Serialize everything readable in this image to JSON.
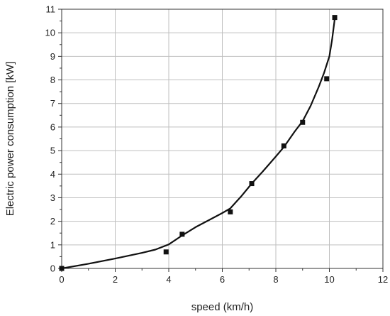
{
  "chart_data": {
    "type": "scatter",
    "title": "",
    "xlabel": "speed (km/h)",
    "ylabel": "Electric power consumption  [kW]",
    "xlim": [
      0,
      12
    ],
    "ylim": [
      0,
      11
    ],
    "xticks": [
      "0",
      "2",
      "4",
      "6",
      "8",
      "10",
      "12"
    ],
    "yticks": [
      "0",
      "1",
      "2",
      "3",
      "4",
      "5",
      "6",
      "7",
      "8",
      "9",
      "10",
      "11"
    ],
    "grid": true,
    "legend": "none",
    "series": [
      {
        "kind": "points",
        "marker": "square",
        "x": [
          0.0,
          3.9,
          4.5,
          6.3,
          7.1,
          8.3,
          9.0,
          9.9,
          10.2
        ],
        "y": [
          0.0,
          0.7,
          1.45,
          2.4,
          3.6,
          5.2,
          6.2,
          8.05,
          10.65
        ]
      },
      {
        "kind": "fit-curve",
        "x": [
          0.0,
          1.0,
          2.0,
          3.0,
          3.5,
          4.0,
          4.5,
          5.0,
          5.5,
          6.0,
          6.3,
          6.7,
          7.1,
          7.5,
          8.0,
          8.3,
          8.7,
          9.0,
          9.3,
          9.6,
          9.8,
          10.0,
          10.1,
          10.2
        ],
        "y": [
          0.0,
          0.2,
          0.42,
          0.66,
          0.8,
          1.02,
          1.4,
          1.75,
          2.05,
          2.35,
          2.55,
          3.05,
          3.6,
          4.1,
          4.75,
          5.15,
          5.8,
          6.25,
          6.9,
          7.7,
          8.3,
          9.0,
          9.7,
          10.6
        ]
      }
    ],
    "colors": {
      "marker": "#111111",
      "curve": "#111111",
      "grid": "#bfbfbf",
      "axis": "#333333"
    }
  }
}
